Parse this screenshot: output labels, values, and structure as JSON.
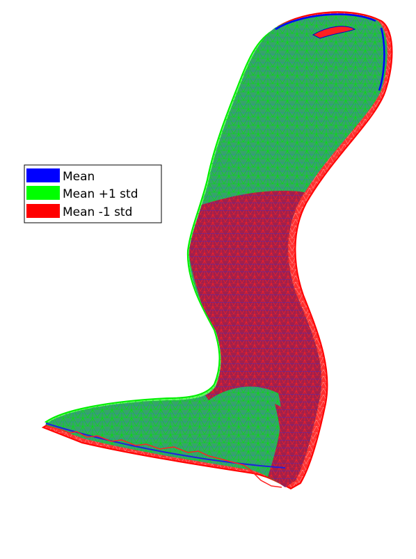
{
  "figure": {
    "legend": {
      "items": [
        {
          "label": "Mean",
          "color": "#0000ff"
        },
        {
          "label": "Mean +1 std",
          "color": "#00ff00"
        },
        {
          "label": "Mean -1 std",
          "color": "#ff0000"
        }
      ]
    },
    "mesh_colors": {
      "mean": "#0000ff",
      "plus_std": "#00ff00",
      "minus_std": "#ff0000",
      "overlap_green": "#3aa862",
      "overlap_red": "#b0204a"
    }
  }
}
